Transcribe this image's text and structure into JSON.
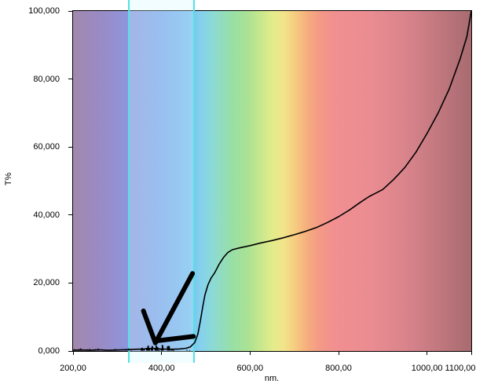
{
  "chart_data": {
    "type": "line",
    "title": "",
    "xlabel": "nm.",
    "ylabel": "T%",
    "xlim": [
      200,
      1100
    ],
    "ylim": [
      0,
      100
    ],
    "grid": false,
    "legend": false,
    "x_ticks": [
      {
        "v": 200,
        "label": "200,00"
      },
      {
        "v": 400,
        "label": "400,00"
      },
      {
        "v": 600,
        "label": "600,00"
      },
      {
        "v": 800,
        "label": "800,00"
      },
      {
        "v": 1000,
        "label": "1000,00"
      },
      {
        "v": 1100,
        "label": "1100,00"
      }
    ],
    "y_ticks": [
      {
        "v": 0,
        "label": "0,000"
      },
      {
        "v": 20,
        "label": "20,000"
      },
      {
        "v": 40,
        "label": "40,000"
      },
      {
        "v": 60,
        "label": "60,000"
      },
      {
        "v": 80,
        "label": "80,000"
      },
      {
        "v": 100,
        "label": "100,000"
      }
    ],
    "background": {
      "name": "visible-spectrum-gradient",
      "stops": [
        [
          "0%",
          "#a288ad"
        ],
        [
          "6%",
          "#9b8ac2"
        ],
        [
          "13%",
          "#8f94da"
        ],
        [
          "22%",
          "#7ea4ea"
        ],
        [
          "29%",
          "#7dbaef"
        ],
        [
          "32%",
          "#84d1ee"
        ],
        [
          "35%",
          "#8cdad6"
        ],
        [
          "40%",
          "#98dfa5"
        ],
        [
          "44%",
          "#abe293"
        ],
        [
          "47%",
          "#c7e78d"
        ],
        [
          "50%",
          "#e2ec8b"
        ],
        [
          "53%",
          "#f2e489"
        ],
        [
          "56%",
          "#f6c980"
        ],
        [
          "59%",
          "#f5ac7e"
        ],
        [
          "62%",
          "#f49986"
        ],
        [
          "66%",
          "#f18f91"
        ],
        [
          "75%",
          "#ea8c91"
        ],
        [
          "85%",
          "#d6828a"
        ],
        [
          "100%",
          "#a76b70"
        ]
      ]
    },
    "highlight_band": {
      "x_start": 325,
      "x_end": 475,
      "edge_color": "#4fe3e8",
      "fill_color": "rgba(210,250,252,0.32)"
    },
    "series": [
      {
        "name": "transmittance-curve",
        "color": "#000000",
        "width": 1.6,
        "points": [
          [
            200,
            0.25
          ],
          [
            220,
            0.3
          ],
          [
            240,
            0.2
          ],
          [
            260,
            0.35
          ],
          [
            280,
            0.2
          ],
          [
            300,
            0.3
          ],
          [
            320,
            0.4
          ],
          [
            340,
            0.5
          ],
          [
            360,
            0.6
          ],
          [
            380,
            0.8
          ],
          [
            400,
            0.6
          ],
          [
            420,
            0.5
          ],
          [
            440,
            0.6
          ],
          [
            455,
            0.8
          ],
          [
            465,
            1.2
          ],
          [
            475,
            2.5
          ],
          [
            482,
            5.0
          ],
          [
            488,
            9.0
          ],
          [
            493,
            13.0
          ],
          [
            498,
            16.5
          ],
          [
            505,
            19.5
          ],
          [
            512,
            21.5
          ],
          [
            520,
            23.0
          ],
          [
            530,
            25.5
          ],
          [
            540,
            27.5
          ],
          [
            550,
            29.0
          ],
          [
            560,
            29.8
          ],
          [
            575,
            30.3
          ],
          [
            600,
            31.0
          ],
          [
            625,
            31.8
          ],
          [
            650,
            32.5
          ],
          [
            675,
            33.3
          ],
          [
            700,
            34.2
          ],
          [
            725,
            35.2
          ],
          [
            750,
            36.3
          ],
          [
            775,
            37.8
          ],
          [
            800,
            39.5
          ],
          [
            825,
            41.5
          ],
          [
            850,
            43.8
          ],
          [
            870,
            45.5
          ],
          [
            885,
            46.5
          ],
          [
            900,
            47.5
          ],
          [
            925,
            50.5
          ],
          [
            950,
            54.0
          ],
          [
            975,
            58.5
          ],
          [
            1000,
            64.0
          ],
          [
            1025,
            70.0
          ],
          [
            1050,
            77.0
          ],
          [
            1075,
            86.0
          ],
          [
            1090,
            92.5
          ],
          [
            1100,
            100.0
          ]
        ]
      }
    ],
    "baseline_noise": {
      "x_range": [
        203,
        468
      ],
      "dense_range": [
        352,
        432
      ],
      "max_amplitude": 1.6,
      "color": "#000000"
    },
    "annotation_arrow": {
      "color": "#000000",
      "stroke_width": 6,
      "segments": [
        [
          [
            470,
            22.8
          ],
          [
            386,
            2.4
          ]
        ],
        [
          [
            359,
            11.8
          ],
          [
            386,
            2.4
          ]
        ],
        [
          [
            389,
            3.0
          ],
          [
            472,
            4.3
          ]
        ]
      ]
    }
  }
}
